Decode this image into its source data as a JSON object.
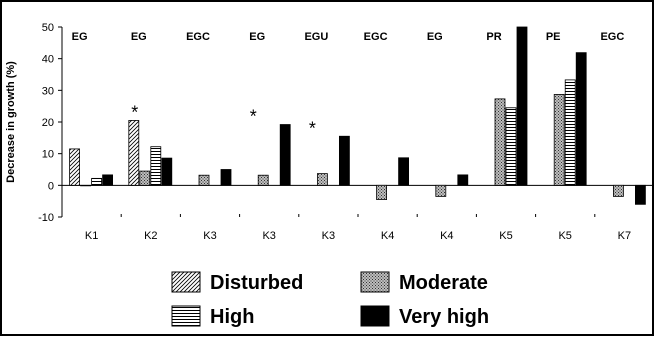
{
  "chart_data": {
    "type": "bar",
    "title": "",
    "xlabel": "",
    "ylabel": "Decrease in growth (%)",
    "ylim": [
      -10,
      50
    ],
    "yticks": [
      50,
      40,
      30,
      20,
      10,
      0,
      -10
    ],
    "grid": false,
    "categories": [
      "K1",
      "K2",
      "K3",
      "K3",
      "K3",
      "K4",
      "K4",
      "K5",
      "K5",
      "K7"
    ],
    "top_labels": [
      "EG",
      "EG",
      "EGC",
      "EG",
      "EGU",
      "EGC",
      "EG",
      "PR",
      "PE",
      "EGC"
    ],
    "significance_marks": [
      "",
      "*",
      "",
      "*",
      "*",
      "",
      "",
      "",
      "",
      ""
    ],
    "series": [
      {
        "name": "Disturbed",
        "pattern": "diagonal",
        "values": [
          11.5,
          20.5,
          null,
          null,
          null,
          null,
          null,
          null,
          null,
          null
        ]
      },
      {
        "name": "Moderate",
        "pattern": "crosshatch",
        "values": [
          0,
          4.5,
          3.2,
          3.2,
          3.7,
          -4.5,
          -3.5,
          27.3,
          28.7,
          -3.5
        ]
      },
      {
        "name": "High",
        "pattern": "horizontal",
        "values": [
          2.2,
          12.2,
          null,
          null,
          null,
          null,
          null,
          24.5,
          33.3,
          null
        ]
      },
      {
        "name": "Very high",
        "pattern": "solid",
        "values": [
          3.3,
          8.6,
          5.0,
          19.2,
          15.5,
          8.7,
          3.3,
          50,
          41.9,
          -6.0
        ]
      }
    ],
    "legend": [
      "Disturbed",
      "Moderate",
      "High",
      "Very high"
    ],
    "legend_position": "bottom"
  }
}
